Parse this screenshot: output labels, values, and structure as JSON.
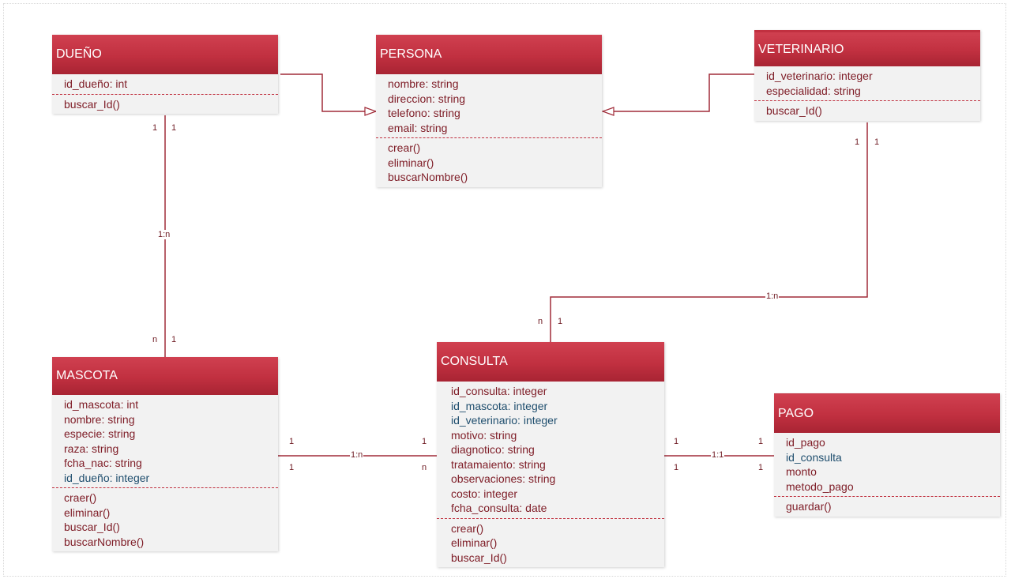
{
  "classes": {
    "dueno": {
      "name": "DUEÑO",
      "attributes": [
        "id_dueño: int"
      ],
      "methods": [
        "buscar_Id()"
      ]
    },
    "persona": {
      "name": "PERSONA",
      "attributes": [
        "nombre: string",
        "direccion: string",
        "telefono: string",
        "email: string"
      ],
      "methods": [
        "crear()",
        "eliminar()",
        "buscarNombre()"
      ]
    },
    "veterinario": {
      "name": "VETERINARIO",
      "attributes": [
        "id_veterinario: integer",
        "especialidad: string"
      ],
      "methods": [
        "buscar_Id()"
      ]
    },
    "mascota": {
      "name": "MASCOTA",
      "attributes": [
        "id_mascota: int",
        "nombre: string",
        "especie: string",
        "raza: string",
        "fcha_nac: string",
        "id_dueño: integer"
      ],
      "methods": [
        "craer()",
        "eliminar()",
        "buscar_Id()",
        "buscarNombre()"
      ]
    },
    "consulta": {
      "name": "CONSULTA",
      "attributes": [
        "id_consulta: integer",
        "id_mascota: integer",
        "id_veterinario: integer",
        "motivo: string",
        "diagnotico: string",
        "tratamaiento: string",
        "observaciones: string",
        "costo: integer",
        "fcha_consulta: date"
      ],
      "methods": [
        "crear()",
        "eliminar()",
        "buscar_Id()"
      ]
    },
    "pago": {
      "name": "PAGO",
      "attributes": [
        "id_pago",
        "id_consulta",
        "monto",
        "metodo_pago"
      ],
      "methods": [
        "guardar()"
      ]
    }
  },
  "relations": {
    "dueno_mascota": {
      "label": "1:n",
      "top_left": "1",
      "top_right": "1",
      "bottom_left": "n",
      "bottom_right": "1"
    },
    "veterinario_consulta": {
      "label": "1:n",
      "top_left": "1",
      "top_right": "1",
      "bottom_left": "n",
      "bottom_right": "1"
    },
    "mascota_consulta": {
      "label": "1:n",
      "left_top": "1",
      "left_bottom": "1",
      "right_top": "1",
      "right_bottom": "n"
    },
    "consulta_pago": {
      "label": "1:1",
      "left_top": "1",
      "left_bottom": "1",
      "right_top": "1",
      "right_bottom": "1"
    }
  },
  "colors": {
    "header": "#c13040",
    "text": "#7e1c26",
    "fk_text": "#1f4e6e",
    "line": "#a02b38"
  }
}
